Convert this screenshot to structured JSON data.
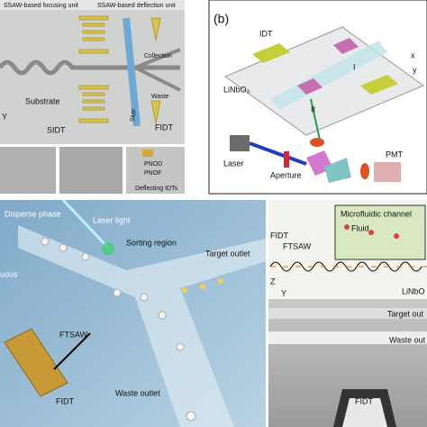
{
  "panel_a": {
    "labels": [
      "SSAW-based focusing unit",
      "SSAW-based deflection unit",
      "Collection",
      "Waste",
      "Substrate",
      "SIDT",
      "SMF",
      "FIDT",
      "Y"
    ],
    "micrograph_labels": [
      "PNOD",
      "PNOF",
      "Deflecting IDTs"
    ]
  },
  "panel_b": {
    "tag": "(b)",
    "labels": [
      "IDT",
      "LiNbO₃",
      "I",
      "II",
      "x",
      "y",
      "Laser",
      "Aperture",
      "PMT"
    ]
  },
  "panel_c": {
    "labels": [
      "Disperse phase",
      "Laser light",
      "Sorting region",
      "Target outlet",
      "uous",
      "FTSAW",
      "FIDT",
      "Waste outlet"
    ]
  },
  "panel_d": {
    "labels": [
      "Microfluidic channel",
      "Fluid",
      "FIDT",
      "FTSAW",
      "LiNbO",
      "Z",
      "Y",
      "Target out",
      "Waste out",
      "FIDT"
    ]
  }
}
